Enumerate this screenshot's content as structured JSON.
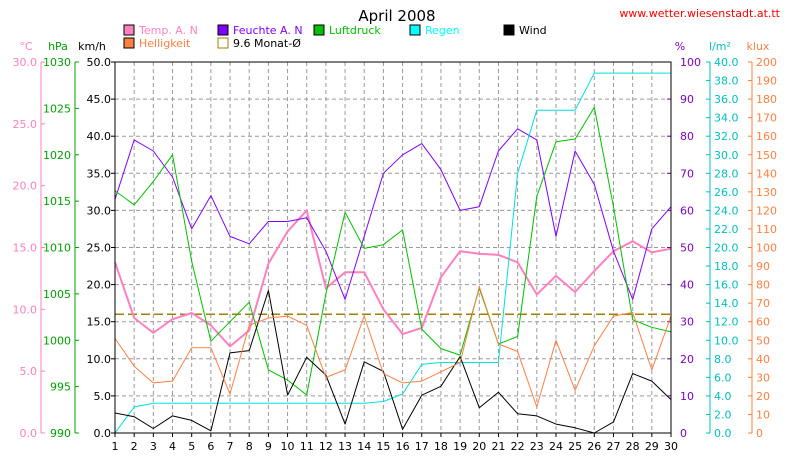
{
  "chart_data": {
    "type": "line",
    "title": "April 2008",
    "source": "www.wetter.wiesenstadt.at.tt",
    "x": [
      1,
      2,
      3,
      4,
      5,
      6,
      7,
      8,
      9,
      10,
      11,
      12,
      13,
      14,
      15,
      16,
      17,
      18,
      19,
      20,
      21,
      22,
      23,
      24,
      25,
      26,
      27,
      28,
      29,
      30
    ],
    "axes": {
      "temp": {
        "unit": "°C",
        "min": 0,
        "max": 30,
        "ticks": [
          "0.0",
          "5.0",
          "10.0",
          "15.0",
          "20.0",
          "25.0",
          "30.0"
        ],
        "color": "#ff80c0"
      },
      "pressure": {
        "unit": "hPa",
        "min": 990,
        "max": 1030,
        "ticks": [
          "990",
          "995",
          "1000",
          "1005",
          "1010",
          "1015",
          "1020",
          "1025",
          "1030"
        ],
        "color": "#00a000"
      },
      "wind": {
        "unit": "km/h",
        "min": 0,
        "max": 50,
        "ticks": [
          "0.0",
          "5.0",
          "10.0",
          "15.0",
          "20.0",
          "25.0",
          "30.0",
          "35.0",
          "40.0",
          "45.0",
          "50.0"
        ],
        "color": "#000000"
      },
      "humidity": {
        "unit": "%",
        "min": 0,
        "max": 100,
        "ticks": [
          "0",
          "10",
          "20",
          "30",
          "40",
          "50",
          "60",
          "70",
          "80",
          "90",
          "100"
        ],
        "color": "#8000c0"
      },
      "rain": {
        "unit": "l/m²",
        "min": 0,
        "max": 40,
        "ticks": [
          "0.0",
          "2.0",
          "4.0",
          "6.0",
          "8.0",
          "10.0",
          "12.0",
          "14.0",
          "16.0",
          "18.0",
          "20.0",
          "22.0",
          "24.0",
          "26.0",
          "28.0",
          "30.0",
          "32.0",
          "34.0",
          "36.0",
          "38.0",
          "40.0"
        ],
        "color": "#00c0c0"
      },
      "light": {
        "unit": "klux",
        "min": 0,
        "max": 200,
        "ticks": [
          "0",
          "10",
          "20",
          "30",
          "40",
          "50",
          "60",
          "70",
          "80",
          "90",
          "100",
          "110",
          "120",
          "130",
          "140",
          "150",
          "160",
          "170",
          "180",
          "190",
          "200"
        ],
        "color": "#ff8040"
      }
    },
    "legend": [
      {
        "label": "Temp. A. N",
        "color": "#ff80c0",
        "style": "filled"
      },
      {
        "label": "Feuchte A. N",
        "color": "#8000ff",
        "style": "filled"
      },
      {
        "label": "Luftdruck",
        "color": "#00c000",
        "style": "filled"
      },
      {
        "label": "Regen",
        "color": "#00ffff",
        "style": "filled"
      },
      {
        "label": "Wind",
        "color": "#000000",
        "style": "filled"
      },
      {
        "label": "Helligkeit",
        "color": "#ff8040",
        "style": "filled"
      },
      {
        "label": "9.6 Monat-Ø",
        "color": "#a08000",
        "style": "outline"
      }
    ],
    "monthly_avg_temp": 9.6,
    "series": [
      {
        "name": "Temp. A. N",
        "axis": "temp",
        "color": "#ff80c0",
        "width": 2,
        "values": [
          13.8,
          9.3,
          8.1,
          9.2,
          9.7,
          8.7,
          7.0,
          8.3,
          13.7,
          16.3,
          18.0,
          11.7,
          13.0,
          13.0,
          10.0,
          8.0,
          8.5,
          12.6,
          14.7,
          14.5,
          14.4,
          13.8,
          11.2,
          12.7,
          11.4,
          13.1,
          14.7,
          15.5,
          14.6,
          14.9
        ]
      },
      {
        "name": "Feuchte A. N",
        "axis": "humidity",
        "color": "#8000ff",
        "width": 1,
        "values": [
          63,
          79,
          76,
          69,
          55,
          64,
          53,
          51,
          57,
          57,
          58,
          49,
          36,
          53,
          70,
          75,
          78,
          71,
          60,
          61,
          76,
          82,
          79,
          53,
          76,
          67,
          49,
          36,
          55,
          61
        ]
      },
      {
        "name": "Luftdruck",
        "axis": "pressure",
        "color": "#00c000",
        "width": 1,
        "values": [
          1016.1,
          1014.6,
          1017.1,
          1020.0,
          1008.5,
          999.9,
          1002.0,
          1004.1,
          996.8,
          995.7,
          994.1,
          1005.0,
          1013.8,
          1009.9,
          1010.3,
          1011.9,
          1001.2,
          999.1,
          998.4,
          1005.6,
          999.6,
          1000.4,
          1015.5,
          1021.4,
          1021.7,
          1025.1,
          1014.4,
          1002.2,
          1001.4,
          1000.9
        ]
      },
      {
        "name": "Regen",
        "axis": "rain",
        "color": "#00e0e0",
        "width": 1,
        "values": [
          0.0,
          2.8,
          3.2,
          3.2,
          3.2,
          3.2,
          3.2,
          3.2,
          3.2,
          3.2,
          3.2,
          3.2,
          3.2,
          3.2,
          3.4,
          4.2,
          7.4,
          7.6,
          7.6,
          7.6,
          7.6,
          28.0,
          34.8,
          34.8,
          34.8,
          38.8,
          38.8,
          38.8,
          38.8,
          38.8
        ]
      },
      {
        "name": "Wind",
        "axis": "wind",
        "color": "#000000",
        "width": 1,
        "values": [
          2.7,
          2.2,
          0.6,
          2.3,
          1.7,
          0.3,
          10.8,
          11.1,
          19.2,
          5.1,
          10.2,
          7.8,
          1.2,
          9.6,
          8.3,
          0.5,
          5.1,
          6.3,
          10.3,
          3.4,
          5.5,
          2.6,
          2.3,
          1.2,
          0.7,
          0.0,
          1.5,
          8.0,
          7.0,
          4.5
        ]
      },
      {
        "name": "Helligkeit",
        "axis": "light",
        "color": "#ff8040",
        "width": 1,
        "values": [
          51,
          36,
          27,
          28,
          46,
          46,
          21,
          58,
          62,
          63,
          58,
          30,
          34,
          63,
          32,
          27,
          28,
          33,
          38,
          79,
          48,
          44,
          14,
          50,
          23,
          47,
          63,
          65,
          34,
          63
        ]
      }
    ]
  }
}
